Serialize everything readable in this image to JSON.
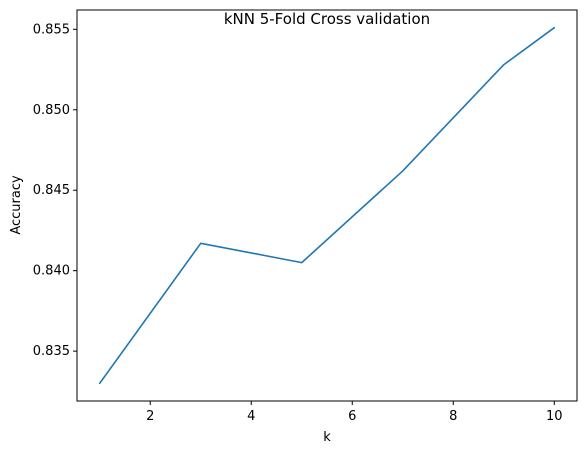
{
  "chart_data": {
    "type": "line",
    "title": "kNN 5-Fold Cross validation",
    "xlabel": "k",
    "ylabel": "Accuracy",
    "xlim": [
      0.55,
      10.45
    ],
    "ylim": [
      0.8319,
      0.8562
    ],
    "xticks": [
      2,
      4,
      6,
      8,
      10
    ],
    "xtick_labels": [
      "2",
      "4",
      "6",
      "8",
      "10"
    ],
    "yticks": [
      0.835,
      0.84,
      0.845,
      0.85,
      0.855
    ],
    "ytick_labels": [
      "0.835",
      "0.840",
      "0.845",
      "0.850",
      "0.855"
    ],
    "grid": false,
    "legend": "none",
    "series": [
      {
        "color": "#1f77b4",
        "x": [
          1,
          3,
          5,
          7,
          9,
          10
        ],
        "y": [
          0.833,
          0.8417,
          0.8405,
          0.8462,
          0.8528,
          0.8551
        ]
      }
    ]
  }
}
